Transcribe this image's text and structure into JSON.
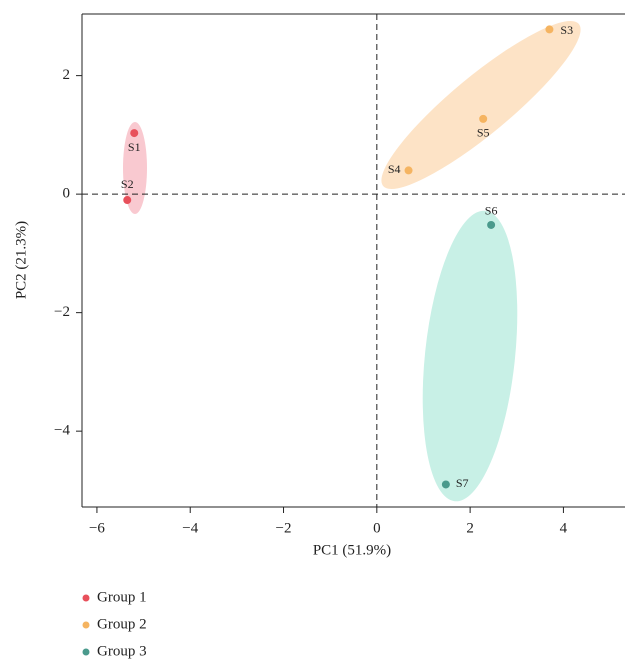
{
  "chart_data": {
    "type": "scatter",
    "x_label": "PC1 (51.9%)",
    "y_label": "PC2 (21.3%)",
    "xlim": [
      -6.32,
      5.32
    ],
    "ylim": [
      -5.28,
      3.04
    ],
    "xticks": [
      {
        "value": -6,
        "label": "−6"
      },
      {
        "value": -4,
        "label": "−4"
      },
      {
        "value": -2,
        "label": "−2"
      },
      0,
      2,
      4
    ],
    "yticks": [
      {
        "value": -4,
        "label": "−4"
      },
      {
        "value": -2,
        "label": "−2"
      },
      0,
      2
    ],
    "zero_lines": true,
    "series": [
      {
        "name": "Group 1",
        "color": "#e8505b",
        "x": [
          -5.2,
          -5.35
        ],
        "values": [
          1.03,
          -0.1
        ],
        "labels": [
          "S1",
          "S2"
        ]
      },
      {
        "name": "Group 2",
        "color": "#f5b461",
        "x": [
          3.7,
          0.68,
          2.28
        ],
        "values": [
          2.78,
          0.4,
          1.27
        ],
        "labels": [
          "S3",
          "S4",
          "S5"
        ]
      },
      {
        "name": "Group 3",
        "color": "#4a9a8c",
        "x": [
          2.45,
          1.48
        ],
        "values": [
          -0.52,
          -4.9
        ],
        "labels": [
          "S6",
          "S7"
        ]
      }
    ]
  }
}
